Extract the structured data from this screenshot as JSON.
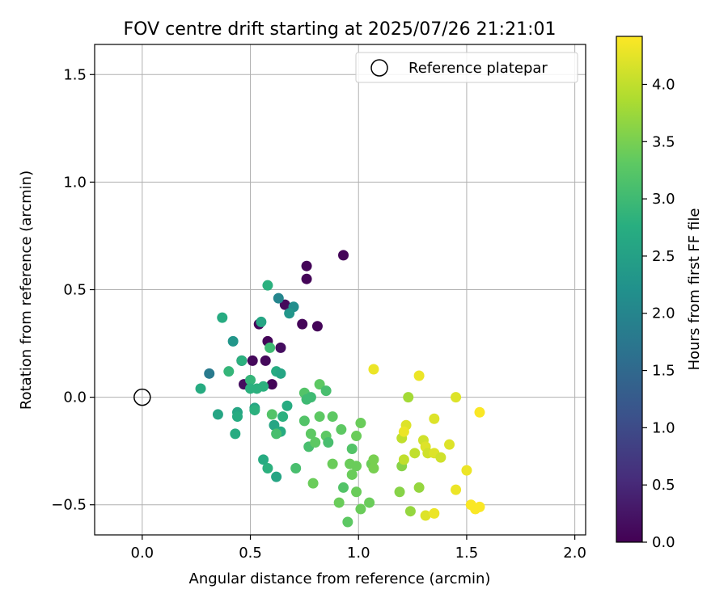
{
  "chart_data": {
    "type": "scatter",
    "title": "FOV centre drift starting at 2025/07/26 21:21:01",
    "xlabel": "Angular distance from reference (arcmin)",
    "ylabel": "Rotation from reference (arcmin)",
    "xlim": [
      -0.22,
      2.05
    ],
    "ylim": [
      -0.64,
      1.64
    ],
    "xticks": [
      0.0,
      0.5,
      1.0,
      1.5,
      2.0
    ],
    "xtick_labels": [
      "0.0",
      "0.5",
      "1.0",
      "1.5",
      "2.0"
    ],
    "yticks": [
      1.5,
      1.0,
      0.5,
      0.0,
      -0.5
    ],
    "ytick_labels": [
      "1.5",
      "1.0",
      "0.5",
      "0.0",
      "−0.5"
    ],
    "grid": true,
    "legend": {
      "position": "top-right",
      "entries": [
        {
          "label": "Reference platepar",
          "marker": "hollow-circle"
        }
      ]
    },
    "reference": {
      "x": 0.0,
      "y": 0.0
    },
    "colorbar": {
      "label": "Hours from first FF file",
      "colormap": "viridis",
      "range": [
        0.0,
        4.42
      ],
      "ticks": [
        0.0,
        0.5,
        1.0,
        1.5,
        2.0,
        2.5,
        3.0,
        3.5,
        4.0
      ],
      "tick_labels": [
        "0.0",
        "0.5",
        "1.0",
        "1.5",
        "2.0",
        "2.5",
        "3.0",
        "3.5",
        "4.0"
      ]
    },
    "points": [
      {
        "x": 0.93,
        "y": 0.66,
        "c": 0.05
      },
      {
        "x": 0.76,
        "y": 0.61,
        "c": 0.05
      },
      {
        "x": 0.76,
        "y": 0.55,
        "c": 0.05
      },
      {
        "x": 0.66,
        "y": 0.43,
        "c": 0.1
      },
      {
        "x": 0.81,
        "y": 0.33,
        "c": 0.05
      },
      {
        "x": 0.74,
        "y": 0.34,
        "c": 0.05
      },
      {
        "x": 0.54,
        "y": 0.34,
        "c": 0.1
      },
      {
        "x": 0.58,
        "y": 0.26,
        "c": 0.05
      },
      {
        "x": 0.64,
        "y": 0.23,
        "c": 0.15
      },
      {
        "x": 0.46,
        "y": 0.17,
        "c": 0.2
      },
      {
        "x": 0.51,
        "y": 0.17,
        "c": 0.1
      },
      {
        "x": 0.57,
        "y": 0.17,
        "c": 0.1
      },
      {
        "x": 0.47,
        "y": 0.06,
        "c": 0.15
      },
      {
        "x": 0.6,
        "y": 0.06,
        "c": 0.05
      },
      {
        "x": 0.31,
        "y": 0.11,
        "c": 1.8
      },
      {
        "x": 0.63,
        "y": 0.46,
        "c": 2.0
      },
      {
        "x": 0.7,
        "y": 0.42,
        "c": 2.15
      },
      {
        "x": 0.68,
        "y": 0.39,
        "c": 2.3
      },
      {
        "x": 0.42,
        "y": 0.26,
        "c": 2.3
      },
      {
        "x": 0.37,
        "y": 0.37,
        "c": 2.7
      },
      {
        "x": 0.58,
        "y": 0.52,
        "c": 2.8
      },
      {
        "x": 0.55,
        "y": 0.35,
        "c": 2.6
      },
      {
        "x": 0.59,
        "y": 0.23,
        "c": 3.0
      },
      {
        "x": 0.46,
        "y": 0.17,
        "c": 2.8
      },
      {
        "x": 0.4,
        "y": 0.12,
        "c": 2.9
      },
      {
        "x": 0.62,
        "y": 0.12,
        "c": 2.7
      },
      {
        "x": 0.64,
        "y": 0.11,
        "c": 2.6
      },
      {
        "x": 0.27,
        "y": 0.04,
        "c": 2.7
      },
      {
        "x": 0.5,
        "y": 0.08,
        "c": 2.9
      },
      {
        "x": 0.5,
        "y": 0.04,
        "c": 2.8
      },
      {
        "x": 0.53,
        "y": 0.04,
        "c": 2.8
      },
      {
        "x": 0.56,
        "y": 0.05,
        "c": 2.8
      },
      {
        "x": 0.67,
        "y": -0.04,
        "c": 2.7
      },
      {
        "x": 0.52,
        "y": -0.05,
        "c": 2.6
      },
      {
        "x": 0.52,
        "y": -0.06,
        "c": 2.8
      },
      {
        "x": 0.44,
        "y": -0.07,
        "c": 2.6
      },
      {
        "x": 0.35,
        "y": -0.08,
        "c": 2.6
      },
      {
        "x": 0.44,
        "y": -0.09,
        "c": 2.7
      },
      {
        "x": 0.65,
        "y": -0.09,
        "c": 2.8
      },
      {
        "x": 0.61,
        "y": -0.13,
        "c": 2.6
      },
      {
        "x": 0.64,
        "y": -0.16,
        "c": 2.7
      },
      {
        "x": 0.43,
        "y": -0.17,
        "c": 2.7
      },
      {
        "x": 0.62,
        "y": -0.17,
        "c": 3.1
      },
      {
        "x": 0.56,
        "y": -0.29,
        "c": 2.7
      },
      {
        "x": 0.58,
        "y": -0.33,
        "c": 2.8
      },
      {
        "x": 0.62,
        "y": -0.37,
        "c": 2.6
      },
      {
        "x": 0.71,
        "y": -0.33,
        "c": 3.1
      },
      {
        "x": 0.6,
        "y": -0.08,
        "c": 3.2
      },
      {
        "x": 0.75,
        "y": 0.02,
        "c": 3.2
      },
      {
        "x": 0.76,
        "y": -0.01,
        "c": 3.0
      },
      {
        "x": 0.78,
        "y": 0.0,
        "c": 3.0
      },
      {
        "x": 0.82,
        "y": 0.06,
        "c": 3.3
      },
      {
        "x": 0.85,
        "y": 0.03,
        "c": 3.1
      },
      {
        "x": 0.75,
        "y": -0.11,
        "c": 3.2
      },
      {
        "x": 0.82,
        "y": -0.09,
        "c": 3.3
      },
      {
        "x": 0.88,
        "y": -0.09,
        "c": 3.3
      },
      {
        "x": 0.78,
        "y": -0.17,
        "c": 3.3
      },
      {
        "x": 0.77,
        "y": -0.23,
        "c": 3.1
      },
      {
        "x": 0.8,
        "y": -0.21,
        "c": 3.3
      },
      {
        "x": 0.85,
        "y": -0.18,
        "c": 3.3
      },
      {
        "x": 0.86,
        "y": -0.21,
        "c": 3.1
      },
      {
        "x": 0.92,
        "y": -0.15,
        "c": 3.3
      },
      {
        "x": 0.99,
        "y": -0.18,
        "c": 3.4
      },
      {
        "x": 1.01,
        "y": -0.12,
        "c": 3.4
      },
      {
        "x": 0.97,
        "y": -0.24,
        "c": 3.2
      },
      {
        "x": 0.88,
        "y": -0.31,
        "c": 3.4
      },
      {
        "x": 0.96,
        "y": -0.31,
        "c": 3.4
      },
      {
        "x": 0.99,
        "y": -0.32,
        "c": 3.4
      },
      {
        "x": 0.97,
        "y": -0.36,
        "c": 3.4
      },
      {
        "x": 0.79,
        "y": -0.4,
        "c": 3.4
      },
      {
        "x": 0.93,
        "y": -0.42,
        "c": 3.2
      },
      {
        "x": 0.99,
        "y": -0.44,
        "c": 3.4
      },
      {
        "x": 0.91,
        "y": -0.49,
        "c": 3.4
      },
      {
        "x": 1.01,
        "y": -0.52,
        "c": 3.4
      },
      {
        "x": 1.05,
        "y": -0.49,
        "c": 3.4
      },
      {
        "x": 0.95,
        "y": -0.58,
        "c": 3.3
      },
      {
        "x": 1.06,
        "y": -0.31,
        "c": 3.4
      },
      {
        "x": 1.07,
        "y": -0.29,
        "c": 3.5
      },
      {
        "x": 1.07,
        "y": -0.33,
        "c": 3.5
      },
      {
        "x": 1.2,
        "y": -0.32,
        "c": 3.6
      },
      {
        "x": 1.19,
        "y": -0.44,
        "c": 3.6
      },
      {
        "x": 1.24,
        "y": -0.53,
        "c": 3.7
      },
      {
        "x": 1.28,
        "y": -0.42,
        "c": 3.7
      },
      {
        "x": 1.23,
        "y": 0.0,
        "c": 3.8
      },
      {
        "x": 1.07,
        "y": 0.13,
        "c": 4.3
      },
      {
        "x": 1.28,
        "y": 0.1,
        "c": 4.3
      },
      {
        "x": 1.2,
        "y": -0.19,
        "c": 4.0
      },
      {
        "x": 1.22,
        "y": -0.13,
        "c": 4.2
      },
      {
        "x": 1.21,
        "y": -0.16,
        "c": 4.3
      },
      {
        "x": 1.21,
        "y": -0.29,
        "c": 4.0
      },
      {
        "x": 1.26,
        "y": -0.26,
        "c": 4.0
      },
      {
        "x": 1.3,
        "y": -0.2,
        "c": 4.1
      },
      {
        "x": 1.31,
        "y": -0.23,
        "c": 4.2
      },
      {
        "x": 1.32,
        "y": -0.26,
        "c": 4.1
      },
      {
        "x": 1.35,
        "y": -0.26,
        "c": 4.2
      },
      {
        "x": 1.38,
        "y": -0.28,
        "c": 4.1
      },
      {
        "x": 1.35,
        "y": -0.1,
        "c": 4.2
      },
      {
        "x": 1.42,
        "y": -0.22,
        "c": 4.2
      },
      {
        "x": 1.45,
        "y": 0.0,
        "c": 4.2
      },
      {
        "x": 1.45,
        "y": -0.43,
        "c": 4.3
      },
      {
        "x": 1.5,
        "y": -0.34,
        "c": 4.3
      },
      {
        "x": 1.52,
        "y": -0.5,
        "c": 4.4
      },
      {
        "x": 1.54,
        "y": -0.52,
        "c": 4.4
      },
      {
        "x": 1.56,
        "y": -0.51,
        "c": 4.4
      },
      {
        "x": 1.56,
        "y": -0.07,
        "c": 4.4
      },
      {
        "x": 1.31,
        "y": -0.55,
        "c": 4.2
      },
      {
        "x": 1.35,
        "y": -0.54,
        "c": 4.3
      }
    ]
  }
}
